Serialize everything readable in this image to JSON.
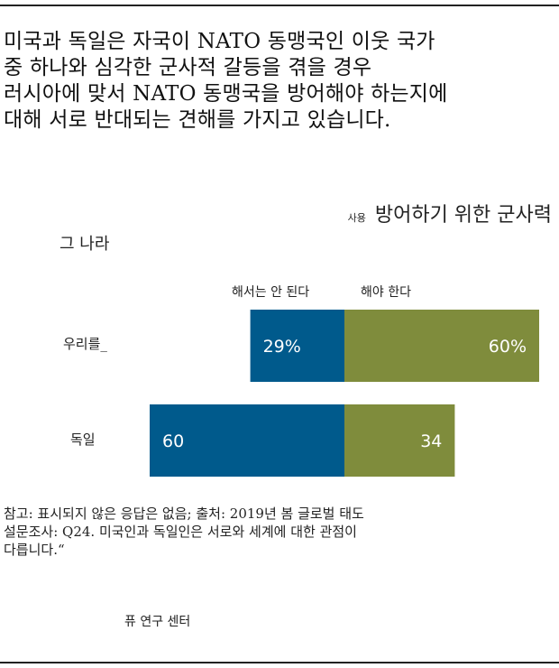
{
  "title_lines": [
    "미국과 독일은 자국이 NATO 동맹국인 이웃 국가",
    "중 하나와 심각한 군사적 갈등을 겪을 경우",
    "러시아에 맞서 NATO 동맹국을 방어해야 하는지에",
    "대해 서로 반대되는 견해를 가지고 있습니다."
  ],
  "header_small": "사용",
  "header_big": "방어하기 위한 군사력",
  "left_header": "그 나라",
  "chart_data": {
    "type": "bar",
    "orientation": "horizontal",
    "stacked": "diverging",
    "categories": [
      "우리를_",
      "독일"
    ],
    "series": [
      {
        "name": "해서는 안 된다",
        "values": [
          29,
          60
        ],
        "labels": [
          "29%",
          "60"
        ],
        "color": "#005a8c"
      },
      {
        "name": "해야 한다",
        "values": [
          60,
          34
        ],
        "labels": [
          "60%",
          "34"
        ],
        "color": "#7f8c3c"
      }
    ]
  },
  "notes_lines": [
    "참고: 표시되지 않은 응답은 없음; 출처: 2019년 봄 글로벌 태도",
    "설문조사: Q24. 미국인과 독일인은 서로와 세계에 대한 관점이",
    "다릅니다.“"
  ],
  "source": "퓨 연구 센터"
}
